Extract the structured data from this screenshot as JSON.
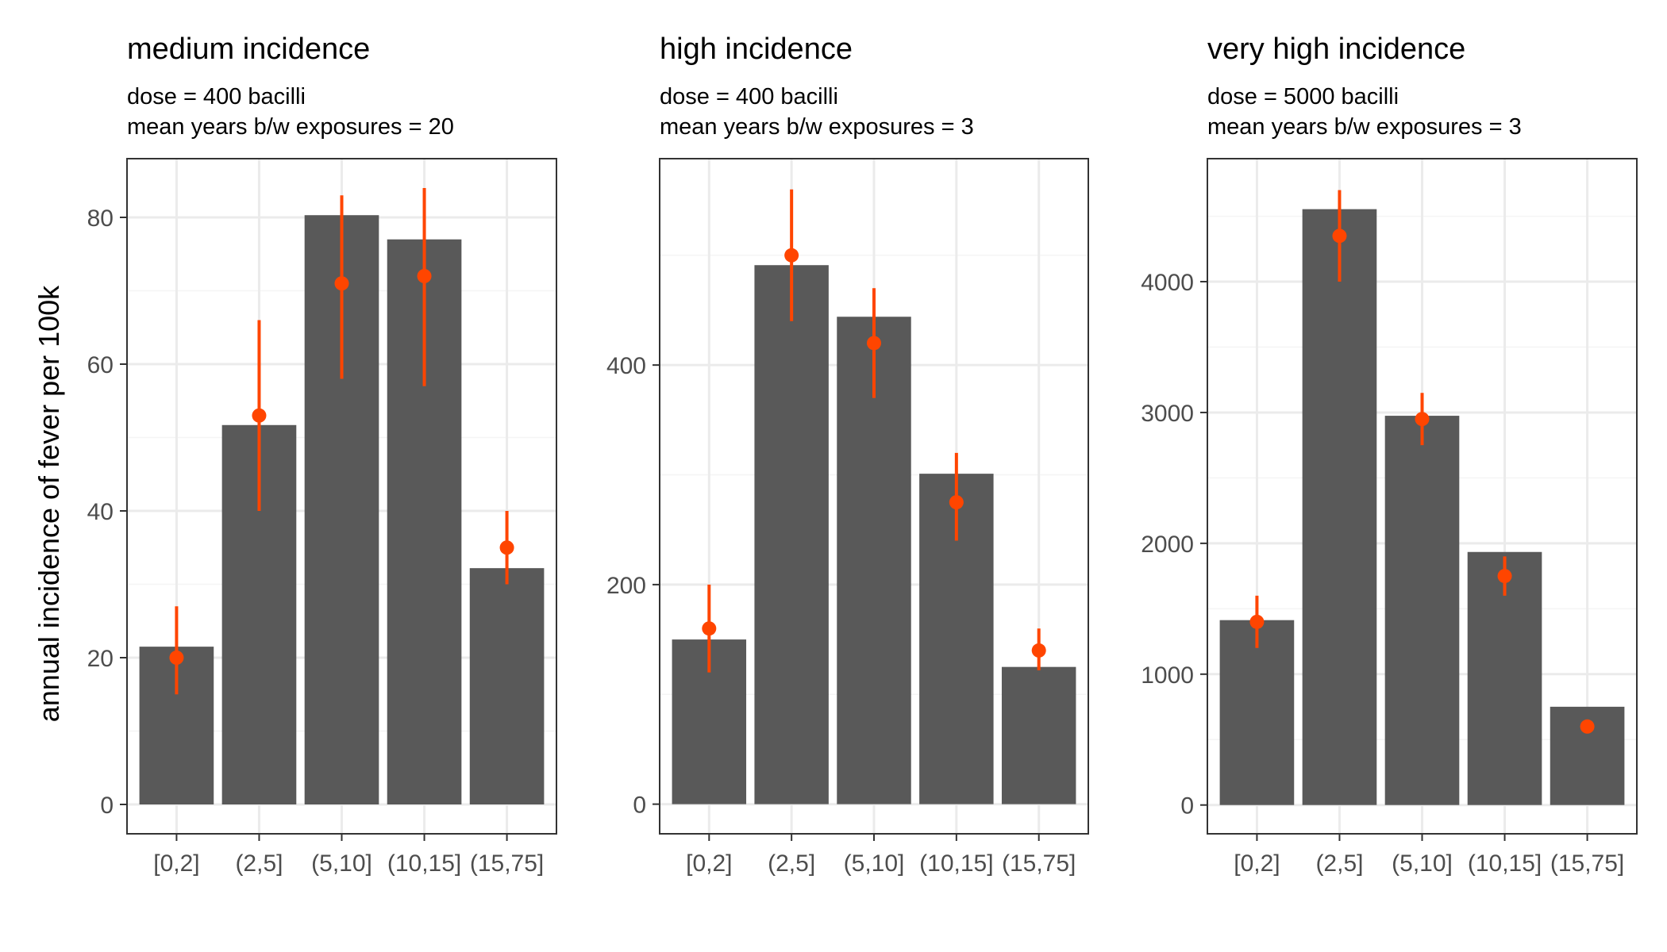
{
  "chart_data": {
    "type": "bar",
    "ylabel": "annual incidence of fever per 100k",
    "colors": {
      "bar": "#595959",
      "point": "#ff4500",
      "grid_major": "#ebebeb",
      "grid_minor": "#f5f5f5",
      "tick_text": "#4d4d4d"
    },
    "panels": [
      {
        "title": "medium incidence",
        "subtitle_line1": "dose = 400 bacilli",
        "subtitle_line2": "mean years b/w exposures = 20",
        "categories": [
          "[0,2]",
          "(2,5]",
          "(5,10]",
          "(10,15]",
          "(15,75]"
        ],
        "bar_values": [
          21.5,
          51.7,
          80.3,
          77,
          32.2
        ],
        "point_values": [
          20,
          53,
          71,
          72,
          35
        ],
        "error_low": [
          15,
          40,
          58,
          57,
          30
        ],
        "error_high": [
          27,
          66,
          83,
          84,
          40
        ],
        "ylim": [
          -4,
          88
        ],
        "yticks": [
          0,
          20,
          40,
          60,
          80
        ],
        "ytick_labels": [
          "0",
          "20",
          "40",
          "60",
          "80"
        ]
      },
      {
        "title": "high incidence",
        "subtitle_line1": "dose = 400 bacilli",
        "subtitle_line2": "mean years b/w exposures = 3",
        "categories": [
          "[0,2]",
          "(2,5]",
          "(5,10]",
          "(10,15]",
          "(15,75]"
        ],
        "bar_values": [
          150,
          491,
          444,
          301,
          125
        ],
        "point_values": [
          160,
          500,
          420,
          275,
          140
        ],
        "error_low": [
          120,
          440,
          370,
          240,
          122
        ],
        "error_high": [
          200,
          560,
          470,
          320,
          160
        ],
        "ylim": [
          -27,
          588
        ],
        "yticks": [
          0,
          200,
          400
        ],
        "ytick_labels": [
          "0",
          "200",
          "400"
        ]
      },
      {
        "title": "very high incidence",
        "subtitle_line1": "dose = 5000 bacilli",
        "subtitle_line2": "mean years b/w exposures = 3",
        "categories": [
          "[0,2]",
          "(2,5]",
          "(5,10]",
          "(10,15]",
          "(15,75]"
        ],
        "bar_values": [
          1413,
          4554,
          2975,
          1934,
          751
        ],
        "point_values": [
          1400,
          4350,
          2950,
          1750,
          600
        ],
        "error_low": [
          1200,
          4000,
          2750,
          1600,
          600
        ],
        "error_high": [
          1600,
          4700,
          3150,
          1900,
          600
        ],
        "ylim": [
          -220,
          4940
        ],
        "yticks": [
          0,
          1000,
          2000,
          3000,
          4000
        ],
        "ytick_labels": [
          "0",
          "1000",
          "2000",
          "3000",
          "4000"
        ]
      }
    ]
  }
}
